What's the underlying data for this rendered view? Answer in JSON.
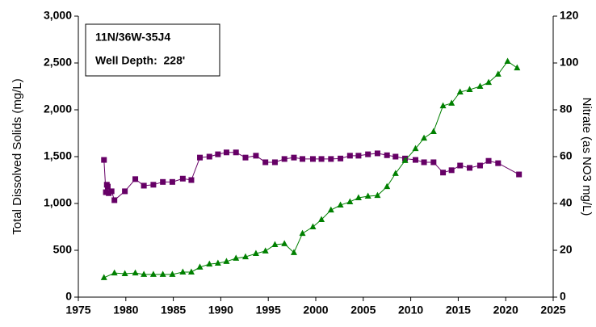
{
  "chart_data": {
    "type": "line",
    "annotations": [
      "11N/36W-35J4",
      "Well Depth:  228'"
    ],
    "y_label": "Total Dissolved Solids (mg/L)",
    "y2_label": "Nitrate (as NO3 mg/L)",
    "xlim": [
      1975,
      2025
    ],
    "xticks": [
      1975,
      1980,
      1985,
      1990,
      1995,
      2000,
      2005,
      2010,
      2015,
      2020,
      2025
    ],
    "ylim": [
      0,
      3000
    ],
    "yticks": [
      0,
      500,
      {
        "value": 1000,
        "label": "1,000"
      },
      {
        "value": 1500,
        "label": "1,500"
      },
      {
        "value": 2000,
        "label": "2,000"
      },
      {
        "value": 2500,
        "label": "2,500"
      },
      {
        "value": 3000,
        "label": "3,000"
      }
    ],
    "y2lim": [
      0,
      120
    ],
    "y2ticks": [
      0,
      20,
      40,
      60,
      80,
      100,
      120
    ],
    "series": [
      {
        "marker": "square",
        "color": "#660066",
        "x": [
          1977.7,
          1977.9,
          1978.0,
          1978.1,
          1978.2,
          1978.5,
          1978.8,
          1979.9,
          1981,
          1981.9,
          1982.9,
          1983.9,
          1984.9,
          1986,
          1986.9,
          1987.8,
          1988.8,
          1989.7,
          1990.6,
          1991.6,
          1992.6,
          1993.7,
          1994.7,
          1995.7,
          1996.7,
          1997.7,
          1998.6,
          1999.7,
          2000.6,
          2001.6,
          2002.6,
          2003.6,
          2004.5,
          2005.5,
          2006.5,
          2007.5,
          2008.4,
          2009.4,
          2010.5,
          2011.4,
          2012.4,
          2013.4,
          2014.3,
          2015.2,
          2016.2,
          2017.3,
          2018.2,
          2019.2,
          2021.4
        ],
        "values": [
          1465,
          1120,
          1200,
          1180,
          1110,
          1130,
          1035,
          1130,
          1260,
          1190,
          1200,
          1230,
          1230,
          1265,
          1250,
          1490,
          1500,
          1525,
          1545,
          1545,
          1490,
          1510,
          1440,
          1440,
          1475,
          1490,
          1475,
          1475,
          1475,
          1475,
          1480,
          1510,
          1510,
          1525,
          1535,
          1515,
          1500,
          1480,
          1465,
          1440,
          1440,
          1330,
          1355,
          1405,
          1380,
          1405,
          1455,
          1430,
          1310
        ]
      },
      {
        "marker": "triangle",
        "color": "#008000",
        "axis": "y2",
        "x": [
          1977.7,
          1978.8,
          1979.9,
          1981,
          1981.9,
          1982.9,
          1983.9,
          1984.9,
          1986,
          1986.9,
          1987.8,
          1988.8,
          1989.7,
          1990.6,
          1991.6,
          1992.6,
          1993.7,
          1994.7,
          1995.7,
          1996.7,
          1997.7,
          1998.6,
          1999.7,
          2000.6,
          2001.6,
          2002.6,
          2003.6,
          2004.5,
          2005.5,
          2006.5,
          2007.5,
          2008.4,
          2009.4,
          2010.5,
          2011.4,
          2012.4,
          2013.4,
          2014.3,
          2015.2,
          2016.2,
          2017.3,
          2018.2,
          2019.2,
          2020.2,
          2021.2
        ],
        "values": [
          8.3,
          10.3,
          10,
          10.3,
          9.7,
          9.7,
          9.7,
          9.7,
          10.7,
          10.7,
          12.8,
          14.1,
          14.5,
          15.2,
          16.6,
          17.2,
          18.6,
          19.7,
          22.4,
          22.8,
          19,
          27.2,
          30,
          33.1,
          37.2,
          39.3,
          40.7,
          42.4,
          43.1,
          43.4,
          47.2,
          52.8,
          58.3,
          63.4,
          67.9,
          70.7,
          81.7,
          82.8,
          87.6,
          88.6,
          90,
          91.7,
          95.2,
          100.7,
          97.9
        ]
      }
    ]
  }
}
